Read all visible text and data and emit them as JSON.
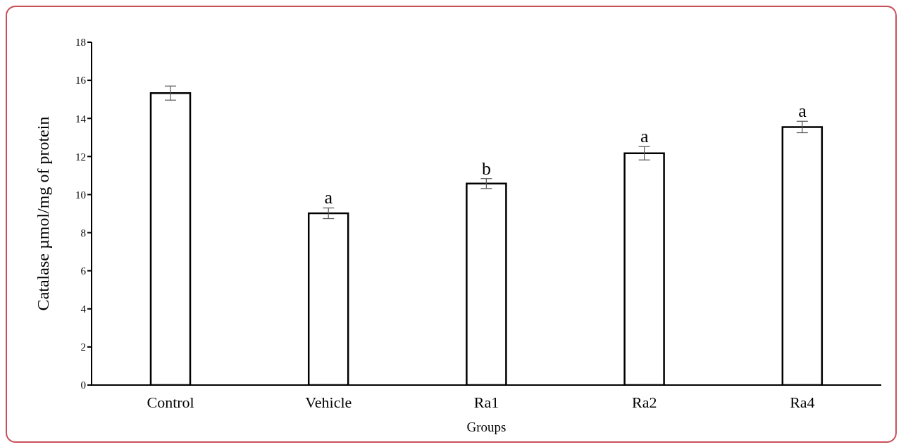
{
  "chart_data": {
    "type": "bar",
    "xlabel": "Groups",
    "ylabel": "Catalase µmol/mg of protein",
    "categories": [
      "Control",
      "Vehicle",
      "Ra1",
      "Ra2",
      "Ra4"
    ],
    "values": [
      15.33,
      9.02,
      10.58,
      12.17,
      13.55
    ],
    "errors": [
      0.37,
      0.28,
      0.26,
      0.35,
      0.3
    ],
    "color": "#ffffff",
    "ylim": [
      0,
      18
    ],
    "yticks": [
      0,
      2,
      4,
      6,
      8,
      10,
      12,
      14,
      16,
      18
    ],
    "grid": false,
    "legend": false,
    "annotations": [
      {
        "text": "a",
        "x": "Vehicle",
        "y": 9.3
      },
      {
        "text": "b",
        "x": "Ra1",
        "y": 10.84
      },
      {
        "text": "a",
        "x": "Ra2",
        "y": 12.52
      },
      {
        "text": "a",
        "x": "Ra4",
        "y": 13.85
      }
    ]
  }
}
